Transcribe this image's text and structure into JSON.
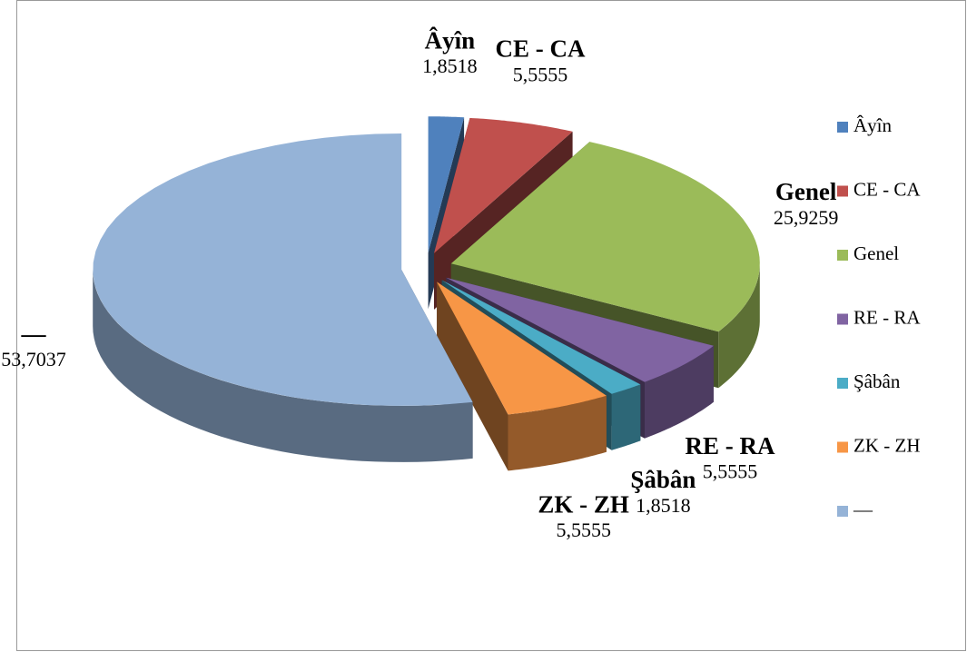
{
  "chart_data": {
    "type": "pie",
    "categories": [
      "Âyîn",
      "CE - CA",
      "Genel",
      "RE - RA",
      "Şâbân",
      "ZK - ZH",
      "—"
    ],
    "values": [
      1.8518,
      5.5555,
      25.9259,
      5.5555,
      1.8518,
      5.5555,
      53.7037
    ],
    "value_labels": [
      "1,8518",
      "5,5555",
      "25,9259",
      "5,5555",
      "1,8518",
      "5,5555",
      "53,7037"
    ],
    "colors": [
      "#4f81bd",
      "#c0504d",
      "#9bbb59",
      "#8064a2",
      "#4bacc6",
      "#f79646",
      "#95b3d7"
    ],
    "legend": "right"
  }
}
